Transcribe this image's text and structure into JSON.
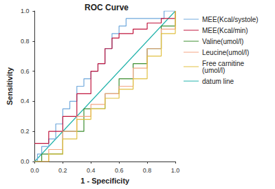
{
  "chart_data": {
    "type": "line",
    "title": "ROC Curve",
    "x_label": "1 - Specificity",
    "y_label": "Sensitivity",
    "xlim": [
      0,
      1
    ],
    "ylim": [
      0,
      1
    ],
    "xticks": [
      {
        "value": 0,
        "label": "0.0"
      },
      {
        "value": 0.2,
        "label": "0.2"
      },
      {
        "value": 0.4,
        "label": "0.4"
      },
      {
        "value": 0.6,
        "label": "0.6"
      },
      {
        "value": 0.8,
        "label": "0.8"
      },
      {
        "value": 1,
        "label": "1.0"
      }
    ],
    "yticks": [
      {
        "value": 0,
        "label": "0.0"
      },
      {
        "value": 0.2,
        "label": "0.2"
      },
      {
        "value": 0.4,
        "label": "0.4"
      },
      {
        "value": 0.6,
        "label": "0.6"
      },
      {
        "value": 0.8,
        "label": "0.8"
      },
      {
        "value": 1,
        "label": "1.0"
      }
    ],
    "grid": false,
    "legend": "right",
    "series": [
      {
        "name": "MEE(Kcal/systole)",
        "color": "#6fa8dc",
        "line_style": "step",
        "x": [
          0,
          0.02,
          0.05,
          0.1,
          0.15,
          0.2,
          0.25,
          0.3,
          0.35,
          0.4,
          0.45,
          0.5,
          0.55,
          0.6,
          0.65,
          0.8,
          0.92,
          1
        ],
        "values": [
          0,
          0.05,
          0.1,
          0.15,
          0.25,
          0.35,
          0.4,
          0.5,
          0.55,
          0.6,
          0.65,
          0.75,
          0.85,
          0.9,
          0.95,
          0.95,
          1,
          1
        ]
      },
      {
        "name": "MEE(Kcal/min)",
        "color": "#c0143c",
        "line_style": "step",
        "x": [
          0,
          0.05,
          0.1,
          0.2,
          0.3,
          0.4,
          0.45,
          0.5,
          0.55,
          0.6,
          0.7,
          0.8,
          0.9,
          1
        ],
        "values": [
          0.12,
          0.12,
          0.2,
          0.3,
          0.45,
          0.6,
          0.65,
          0.75,
          0.82,
          0.85,
          0.88,
          0.92,
          0.95,
          1
        ]
      },
      {
        "name": "Valine(umol/l)",
        "color": "#3c8d2f",
        "line_style": "step",
        "x": [
          0,
          0.05,
          0.2,
          0.35,
          0.5,
          0.6,
          0.7,
          0.8,
          0.9,
          1
        ],
        "values": [
          0,
          0.05,
          0.2,
          0.35,
          0.45,
          0.55,
          0.65,
          0.75,
          0.9,
          1
        ]
      },
      {
        "name": "Leucine(umol/l)",
        "color": "#f4a582",
        "line_style": "step",
        "x": [
          0,
          0.1,
          0.2,
          0.3,
          0.4,
          0.5,
          0.6,
          0.7,
          0.8,
          0.9,
          1
        ],
        "values": [
          0,
          0.08,
          0.2,
          0.3,
          0.38,
          0.45,
          0.5,
          0.62,
          0.75,
          0.88,
          1
        ]
      },
      {
        "name": "Free carnitine\n(umol/l)",
        "color": "#e0c040",
        "line_style": "step",
        "x": [
          0,
          0.1,
          0.2,
          0.3,
          0.4,
          0.5,
          0.6,
          0.7,
          0.8,
          0.9,
          1
        ],
        "values": [
          0,
          0.05,
          0.15,
          0.28,
          0.35,
          0.42,
          0.48,
          0.55,
          0.7,
          0.85,
          1
        ]
      },
      {
        "name": "datum line",
        "color": "#20b2aa",
        "line_style": "solid",
        "x": [
          0,
          1
        ],
        "values": [
          0,
          1
        ]
      }
    ]
  }
}
